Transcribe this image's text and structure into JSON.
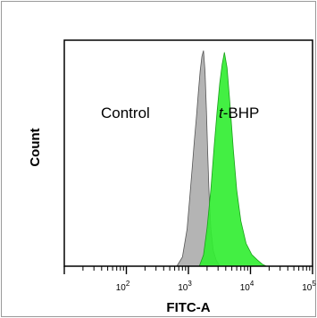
{
  "chart_data": {
    "type": "area",
    "xlabel": "FITC-A",
    "ylabel": "Count",
    "x_scale": "log",
    "xlim": [
      10,
      100000
    ],
    "x_ticks": [
      {
        "value": 100,
        "base": "10",
        "exp": "2"
      },
      {
        "value": 1000,
        "base": "10",
        "exp": "3"
      },
      {
        "value": 10000,
        "base": "10",
        "exp": "4"
      },
      {
        "value": 100000,
        "base": "10",
        "exp": "5"
      }
    ],
    "ylim": [
      0,
      1
    ],
    "grid": false,
    "annotations": [
      {
        "text": "Control",
        "italic_prefix": "",
        "series": "Control"
      },
      {
        "text": "-BHP",
        "italic_prefix": "t",
        "series": "t-BHP"
      }
    ],
    "series": [
      {
        "name": "Control",
        "color": "#b4b4b4",
        "x": [
          650,
          800,
          950,
          1050,
          1150,
          1250,
          1350,
          1450,
          1550,
          1650,
          1750,
          1850,
          1950,
          2050,
          2150,
          2300,
          2500,
          2800,
          3200
        ],
        "y": [
          0.0,
          0.05,
          0.18,
          0.32,
          0.45,
          0.58,
          0.7,
          0.82,
          0.92,
          0.98,
          1.0,
          0.9,
          0.72,
          0.52,
          0.35,
          0.18,
          0.07,
          0.02,
          0.0
        ]
      },
      {
        "name": "t-BHP",
        "color": "#33ee33",
        "x": [
          1500,
          1750,
          2000,
          2300,
          2600,
          2900,
          3200,
          3500,
          3800,
          4200,
          4700,
          5300,
          6000,
          7000,
          8500,
          10500,
          13000,
          15500,
          18000
        ],
        "y": [
          0.0,
          0.06,
          0.18,
          0.35,
          0.55,
          0.72,
          0.86,
          0.95,
          1.0,
          0.92,
          0.74,
          0.54,
          0.36,
          0.22,
          0.11,
          0.05,
          0.02,
          0.005,
          0.0
        ]
      }
    ]
  }
}
